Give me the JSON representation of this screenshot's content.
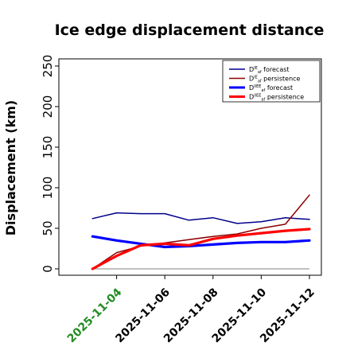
{
  "chart_data": {
    "type": "line",
    "title": "Ice edge displacement distance",
    "xlabel": "",
    "ylabel": "Displacement (km)",
    "ylim": [
      0,
      260
    ],
    "yticks": [
      0,
      50,
      100,
      150,
      200,
      250
    ],
    "x": [
      "2025-11-03",
      "2025-11-04",
      "2025-11-05",
      "2025-11-06",
      "2025-11-07",
      "2025-11-08",
      "2025-11-09",
      "2025-11-10",
      "2025-11-11",
      "2025-11-12"
    ],
    "xlim": [
      "2025-11-02",
      "2025-11-12"
    ],
    "xtick_labels": [
      "2025-11-04",
      "2025-11-06",
      "2025-11-08",
      "2025-11-10",
      "2025-11-12"
    ],
    "xtick_colors": [
      "#228b22",
      "#000000",
      "#000000",
      "#000000",
      "#000000"
    ],
    "grid": false,
    "legend_position": "top-right",
    "reference_line": {
      "y": 0,
      "color": "#808080"
    },
    "series": [
      {
        "name": "D^IE_{af} forecast",
        "color": "#00008b",
        "width": "thin",
        "values": [
          62,
          69,
          68,
          68,
          60,
          63,
          56,
          58,
          63,
          61
        ]
      },
      {
        "name": "D^IE_{af} persistence",
        "color": "#8b0000",
        "width": "thin",
        "values": [
          0,
          20,
          28,
          32,
          36,
          40,
          43,
          50,
          55,
          91
        ]
      },
      {
        "name": "D^IIEE_{af} forecast",
        "color": "#0000ff",
        "width": "thick",
        "values": [
          40,
          35,
          31,
          27,
          28,
          30,
          32,
          33,
          33,
          35
        ]
      },
      {
        "name": "D^IIEE_{af} persistence",
        "color": "#ff0000",
        "width": "thick",
        "values": [
          0,
          16,
          29,
          31,
          29,
          37,
          41,
          44,
          47,
          49
        ]
      }
    ]
  },
  "legend": {
    "items": [
      {
        "prefix": "D",
        "sup": "IE",
        "sub": "af",
        "suffix": " forecast"
      },
      {
        "prefix": "D",
        "sup": "IE",
        "sub": "af",
        "suffix": " persistence"
      },
      {
        "prefix": "D",
        "sup": "IIEE",
        "sub": "af",
        "suffix": " forecast"
      },
      {
        "prefix": "D",
        "sup": "IIEE",
        "sub": "af",
        "suffix": " persistence"
      }
    ]
  }
}
